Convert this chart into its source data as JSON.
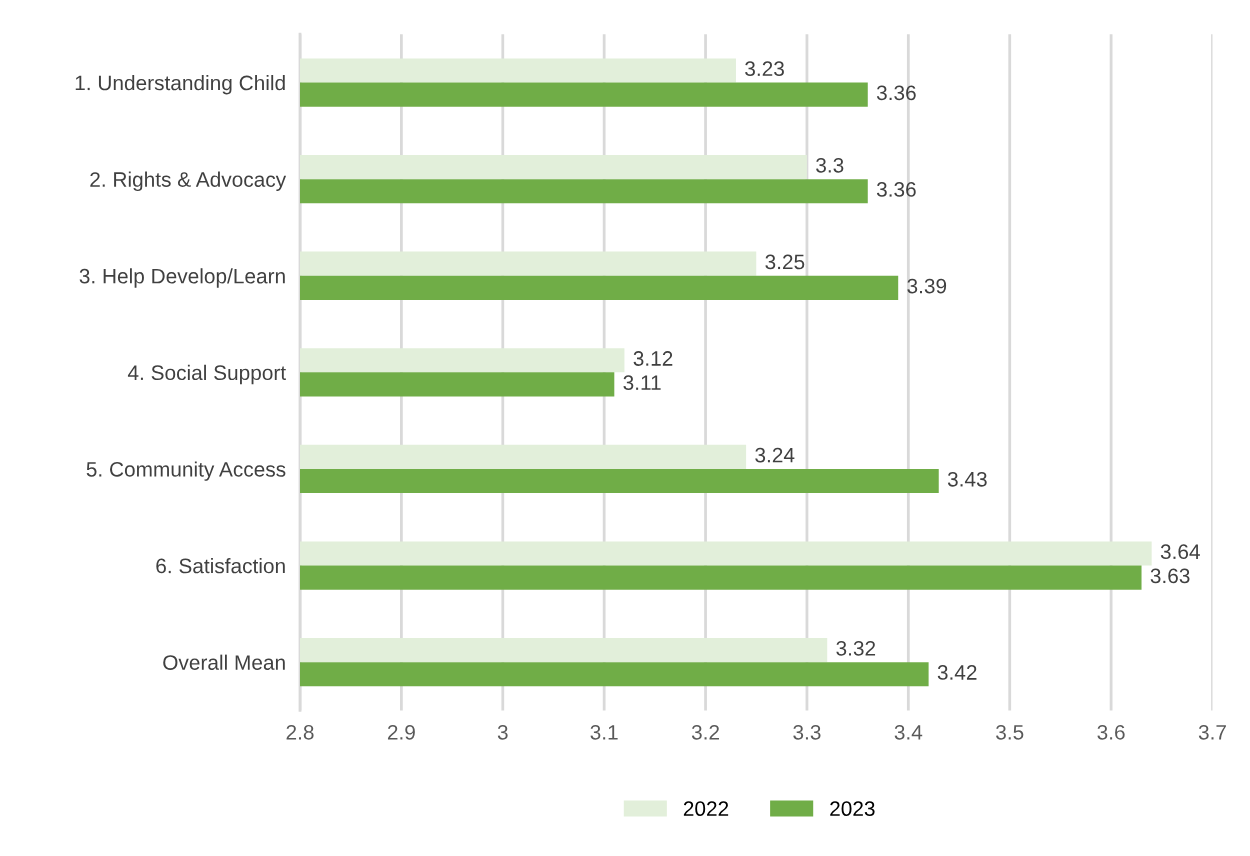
{
  "chart_data": {
    "type": "bar",
    "orientation": "horizontal",
    "categories": [
      "1. Understanding Child",
      "2. Rights & Advocacy",
      "3. Help Develop/Learn",
      "4. Social Support",
      "5. Community Access",
      "6. Satisfaction",
      "Overall Mean"
    ],
    "series": [
      {
        "name": "2022",
        "color": "#e2efda",
        "values": [
          3.23,
          3.3,
          3.25,
          3.12,
          3.24,
          3.64,
          3.32
        ]
      },
      {
        "name": "2023",
        "color": "#70ad47",
        "values": [
          3.36,
          3.36,
          3.39,
          3.11,
          3.43,
          3.63,
          3.42
        ]
      }
    ],
    "xlim": [
      2.8,
      3.7
    ],
    "xticks": [
      2.8,
      2.9,
      3,
      3.1,
      3.2,
      3.3,
      3.4,
      3.5,
      3.6,
      3.7
    ],
    "grid": "x",
    "legend": "bottom",
    "data_labels": true
  }
}
